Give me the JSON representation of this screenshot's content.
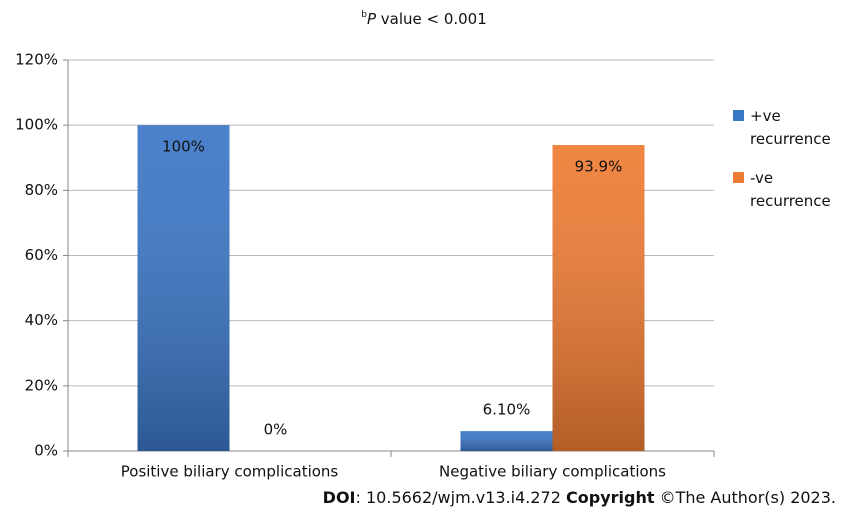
{
  "chart_data": {
    "type": "bar",
    "title_prefix": "b",
    "title_var": "P",
    "title": " value < 0.001",
    "categories": [
      "Positive biliary complications",
      "Negative biliary complications"
    ],
    "series": [
      {
        "name": "+ve recurrence",
        "color": "#3a76c6",
        "values": [
          100,
          6.1
        ],
        "value_labels": [
          "100%",
          "6.10%"
        ]
      },
      {
        "name": "-ve recurrence",
        "color": "#ee7b33",
        "values": [
          0,
          93.9
        ],
        "value_labels": [
          "0%",
          "93.9%"
        ]
      }
    ],
    "ylim": [
      0,
      120
    ],
    "yticks": [
      {
        "value": 0,
        "label": "0%"
      },
      {
        "value": 20,
        "label": "20%"
      },
      {
        "value": 40,
        "label": "40%"
      },
      {
        "value": 60,
        "label": "60%"
      },
      {
        "value": 80,
        "label": "80%"
      },
      {
        "value": 100,
        "label": "100%"
      },
      {
        "value": 120,
        "label": "120%"
      }
    ],
    "grid": true,
    "legend": "right"
  },
  "footer": {
    "doi_label": "DOI",
    "doi": ": 10.5662/wjm.v13.i4.272 ",
    "copyright_label": "Copyright",
    "copyright": " ©The Author(s) 2023."
  }
}
